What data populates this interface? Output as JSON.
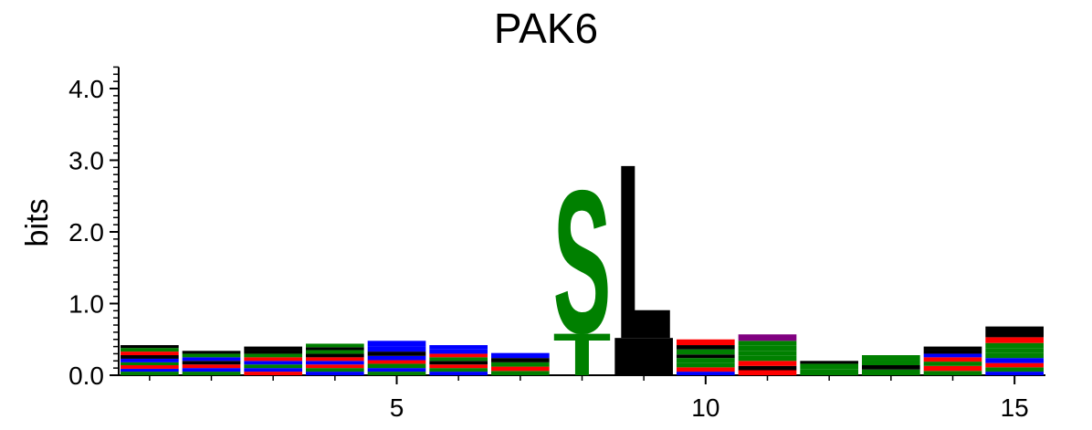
{
  "chart_data": {
    "type": "sequence-logo",
    "title": "PAK6",
    "xlabel": "",
    "ylabel": "bits",
    "ylim": [
      0,
      4.3
    ],
    "xlim": [
      0.5,
      15.5
    ],
    "y_ticks": [
      0,
      1,
      2,
      3,
      4
    ],
    "y_tick_labels": [
      "0.0",
      "1.0",
      "2.0",
      "3.0",
      "4.0"
    ],
    "x_ticks": [
      5,
      10,
      15
    ],
    "x_tick_labels": [
      "5",
      "10",
      "15"
    ],
    "grid": false,
    "colors": {
      "black": "#000000",
      "green": "#008000",
      "blue": "#0000ff",
      "red": "#ff0000",
      "purple": "#800080",
      "axis": "#000000"
    },
    "positions": [
      {
        "pos": 1,
        "stack": [
          {
            "letter": "",
            "color": "green",
            "bits": 0.05
          },
          {
            "letter": "",
            "color": "blue",
            "bits": 0.04
          },
          {
            "letter": "",
            "color": "red",
            "bits": 0.05
          },
          {
            "letter": "",
            "color": "green",
            "bits": 0.04
          },
          {
            "letter": "",
            "color": "blue",
            "bits": 0.05
          },
          {
            "letter": "",
            "color": "black",
            "bits": 0.05
          },
          {
            "letter": "",
            "color": "red",
            "bits": 0.05
          },
          {
            "letter": "",
            "color": "green",
            "bits": 0.05
          },
          {
            "letter": "",
            "color": "black",
            "bits": 0.04
          }
        ]
      },
      {
        "pos": 2,
        "stack": [
          {
            "letter": "",
            "color": "green",
            "bits": 0.05
          },
          {
            "letter": "",
            "color": "blue",
            "bits": 0.05
          },
          {
            "letter": "",
            "color": "red",
            "bits": 0.05
          },
          {
            "letter": "",
            "color": "black",
            "bits": 0.05
          },
          {
            "letter": "",
            "color": "blue",
            "bits": 0.05
          },
          {
            "letter": "",
            "color": "green",
            "bits": 0.05
          },
          {
            "letter": "",
            "color": "black",
            "bits": 0.04
          }
        ]
      },
      {
        "pos": 3,
        "stack": [
          {
            "letter": "",
            "color": "red",
            "bits": 0.05
          },
          {
            "letter": "",
            "color": "blue",
            "bits": 0.05
          },
          {
            "letter": "",
            "color": "green",
            "bits": 0.05
          },
          {
            "letter": "",
            "color": "blue",
            "bits": 0.05
          },
          {
            "letter": "",
            "color": "red",
            "bits": 0.05
          },
          {
            "letter": "",
            "color": "green",
            "bits": 0.05
          },
          {
            "letter": "",
            "color": "black",
            "bits": 0.05
          },
          {
            "letter": "",
            "color": "black",
            "bits": 0.05
          }
        ]
      },
      {
        "pos": 4,
        "stack": [
          {
            "letter": "",
            "color": "blue",
            "bits": 0.05
          },
          {
            "letter": "",
            "color": "green",
            "bits": 0.05
          },
          {
            "letter": "",
            "color": "red",
            "bits": 0.05
          },
          {
            "letter": "",
            "color": "blue",
            "bits": 0.05
          },
          {
            "letter": "",
            "color": "red",
            "bits": 0.05
          },
          {
            "letter": "",
            "color": "black",
            "bits": 0.05
          },
          {
            "letter": "",
            "color": "green",
            "bits": 0.05
          },
          {
            "letter": "",
            "color": "black",
            "bits": 0.04
          },
          {
            "letter": "",
            "color": "green",
            "bits": 0.05
          }
        ]
      },
      {
        "pos": 5,
        "stack": [
          {
            "letter": "",
            "color": "green",
            "bits": 0.05
          },
          {
            "letter": "",
            "color": "blue",
            "bits": 0.05
          },
          {
            "letter": "",
            "color": "green",
            "bits": 0.06
          },
          {
            "letter": "",
            "color": "red",
            "bits": 0.05
          },
          {
            "letter": "",
            "color": "blue",
            "bits": 0.06
          },
          {
            "letter": "",
            "color": "black",
            "bits": 0.06
          },
          {
            "letter": "",
            "color": "blue",
            "bits": 0.07
          },
          {
            "letter": "",
            "color": "blue",
            "bits": 0.08
          }
        ]
      },
      {
        "pos": 6,
        "stack": [
          {
            "letter": "",
            "color": "blue",
            "bits": 0.05
          },
          {
            "letter": "",
            "color": "green",
            "bits": 0.05
          },
          {
            "letter": "",
            "color": "red",
            "bits": 0.05
          },
          {
            "letter": "",
            "color": "black",
            "bits": 0.05
          },
          {
            "letter": "",
            "color": "green",
            "bits": 0.05
          },
          {
            "letter": "",
            "color": "red",
            "bits": 0.05
          },
          {
            "letter": "",
            "color": "blue",
            "bits": 0.06
          },
          {
            "letter": "",
            "color": "blue",
            "bits": 0.06
          }
        ]
      },
      {
        "pos": 7,
        "stack": [
          {
            "letter": "",
            "color": "green",
            "bits": 0.06
          },
          {
            "letter": "",
            "color": "red",
            "bits": 0.06
          },
          {
            "letter": "",
            "color": "green",
            "bits": 0.06
          },
          {
            "letter": "",
            "color": "black",
            "bits": 0.06
          },
          {
            "letter": "",
            "color": "blue",
            "bits": 0.07
          }
        ]
      },
      {
        "pos": 8,
        "stack": [
          {
            "letter": "T",
            "color": "green",
            "bits": 0.6
          },
          {
            "letter": "S",
            "color": "green",
            "bits": 2.05
          }
        ]
      },
      {
        "pos": 9,
        "stack": [
          {
            "letter": "",
            "color": "black",
            "bits": 0.52
          },
          {
            "letter": "L",
            "color": "black",
            "bits": 2.51
          }
        ]
      },
      {
        "pos": 10,
        "stack": [
          {
            "letter": "",
            "color": "blue",
            "bits": 0.05
          },
          {
            "letter": "",
            "color": "red",
            "bits": 0.06
          },
          {
            "letter": "",
            "color": "green",
            "bits": 0.06
          },
          {
            "letter": "",
            "color": "green",
            "bits": 0.07
          },
          {
            "letter": "",
            "color": "black",
            "bits": 0.05
          },
          {
            "letter": "",
            "color": "green",
            "bits": 0.07
          },
          {
            "letter": "",
            "color": "black",
            "bits": 0.06
          },
          {
            "letter": "",
            "color": "red",
            "bits": 0.08
          }
        ]
      },
      {
        "pos": 11,
        "stack": [
          {
            "letter": "",
            "color": "red",
            "bits": 0.07
          },
          {
            "letter": "",
            "color": "black",
            "bits": 0.06
          },
          {
            "letter": "",
            "color": "red",
            "bits": 0.07
          },
          {
            "letter": "",
            "color": "green",
            "bits": 0.07
          },
          {
            "letter": "",
            "color": "green",
            "bits": 0.07
          },
          {
            "letter": "",
            "color": "green",
            "bits": 0.07
          },
          {
            "letter": "",
            "color": "green",
            "bits": 0.07
          },
          {
            "letter": "",
            "color": "purple",
            "bits": 0.09
          }
        ]
      },
      {
        "pos": 12,
        "stack": [
          {
            "letter": "",
            "color": "green",
            "bits": 0.08
          },
          {
            "letter": "",
            "color": "green",
            "bits": 0.08
          },
          {
            "letter": "",
            "color": "black",
            "bits": 0.04
          }
        ]
      },
      {
        "pos": 13,
        "stack": [
          {
            "letter": "",
            "color": "green",
            "bits": 0.08
          },
          {
            "letter": "",
            "color": "black",
            "bits": 0.06
          },
          {
            "letter": "",
            "color": "green",
            "bits": 0.07
          },
          {
            "letter": "",
            "color": "green",
            "bits": 0.07
          }
        ]
      },
      {
        "pos": 14,
        "stack": [
          {
            "letter": "",
            "color": "green",
            "bits": 0.06
          },
          {
            "letter": "",
            "color": "red",
            "bits": 0.07
          },
          {
            "letter": "",
            "color": "green",
            "bits": 0.06
          },
          {
            "letter": "",
            "color": "red",
            "bits": 0.06
          },
          {
            "letter": "",
            "color": "blue",
            "bits": 0.05
          },
          {
            "letter": "",
            "color": "black",
            "bits": 0.05
          },
          {
            "letter": "",
            "color": "black",
            "bits": 0.05
          }
        ]
      },
      {
        "pos": 15,
        "stack": [
          {
            "letter": "",
            "color": "blue",
            "bits": 0.05
          },
          {
            "letter": "",
            "color": "green",
            "bits": 0.06
          },
          {
            "letter": "",
            "color": "red",
            "bits": 0.06
          },
          {
            "letter": "",
            "color": "blue",
            "bits": 0.07
          },
          {
            "letter": "",
            "color": "green",
            "bits": 0.07
          },
          {
            "letter": "",
            "color": "green",
            "bits": 0.07
          },
          {
            "letter": "",
            "color": "green",
            "bits": 0.07
          },
          {
            "letter": "",
            "color": "red",
            "bits": 0.08
          },
          {
            "letter": "",
            "color": "black",
            "bits": 0.15
          }
        ]
      }
    ]
  }
}
